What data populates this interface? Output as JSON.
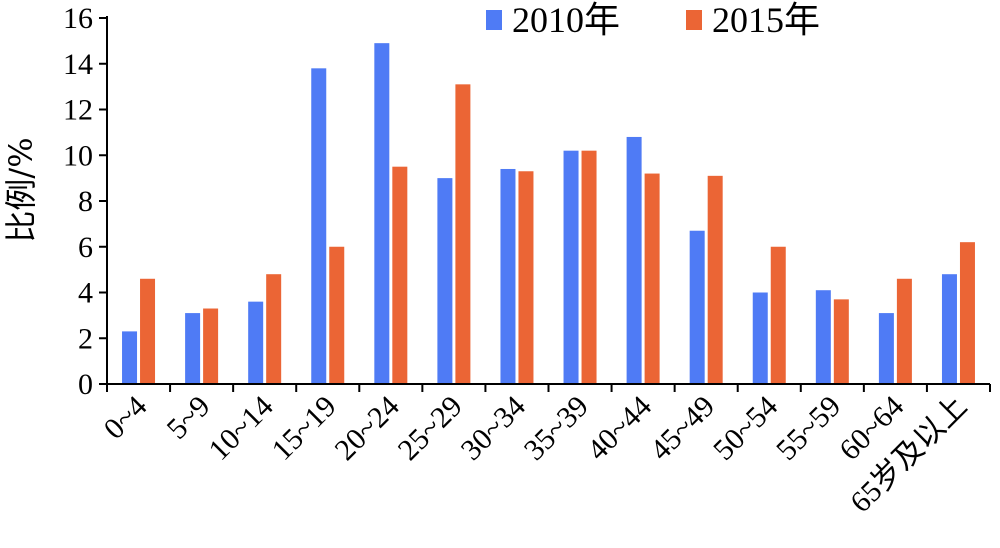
{
  "chart_data": {
    "type": "bar",
    "categories": [
      "0~4",
      "5~9",
      "10~14",
      "15~19",
      "20~24",
      "25~29",
      "30~34",
      "35~39",
      "40~44",
      "45~49",
      "50~54",
      "55~59",
      "60~64",
      "65岁及以上"
    ],
    "series": [
      {
        "name": "2010年",
        "color": "#4F7BF5",
        "values": [
          2.3,
          3.1,
          3.6,
          13.8,
          14.9,
          9.0,
          9.4,
          10.2,
          10.8,
          6.7,
          4.0,
          4.1,
          3.1,
          4.8
        ]
      },
      {
        "name": "2015年",
        "color": "#EB6535",
        "values": [
          4.6,
          3.3,
          4.8,
          6.0,
          9.5,
          13.1,
          9.3,
          10.2,
          9.2,
          9.1,
          6.0,
          3.7,
          4.6,
          6.2
        ]
      }
    ],
    "title": "",
    "xlabel": "",
    "ylabel": "比例/%",
    "ylim": [
      0,
      16
    ],
    "yticks": [
      0,
      2,
      4,
      6,
      8,
      10,
      12,
      14,
      16
    ],
    "grid": false,
    "legend_position": "top-center"
  }
}
